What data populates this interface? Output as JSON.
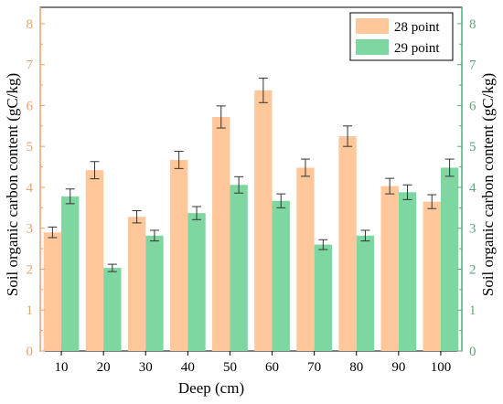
{
  "chart_data": {
    "type": "bar",
    "title": "",
    "xlabel": "Deep (cm)",
    "ylabel_left": "Soil organic carbon content (gC/kg)",
    "ylabel_right": "Soil organic carbon content (gC/kg)",
    "categories": [
      "10",
      "20",
      "30",
      "40",
      "50",
      "60",
      "70",
      "80",
      "90",
      "100"
    ],
    "ylim": [
      0,
      8.4
    ],
    "yticks": [
      "0",
      "1",
      "2",
      "3",
      "4",
      "5",
      "6",
      "7",
      "8"
    ],
    "legend_position": "top-right",
    "grid": false,
    "series": [
      {
        "name": "28 point",
        "color": "#FFC79A",
        "values": [
          2.9,
          4.42,
          3.28,
          4.67,
          5.72,
          6.37,
          4.48,
          5.25,
          4.03,
          3.65
        ],
        "errors": [
          0.13,
          0.21,
          0.15,
          0.21,
          0.27,
          0.3,
          0.21,
          0.25,
          0.19,
          0.17
        ]
      },
      {
        "name": "29 point",
        "color": "#7ED6A0",
        "values": [
          3.78,
          2.03,
          2.82,
          3.37,
          4.06,
          3.67,
          2.6,
          2.82,
          3.88,
          4.48
        ],
        "errors": [
          0.18,
          0.09,
          0.13,
          0.16,
          0.2,
          0.17,
          0.12,
          0.13,
          0.18,
          0.21
        ]
      }
    ],
    "left_axis_color": "#E8A070",
    "right_axis_color": "#5AA878"
  }
}
